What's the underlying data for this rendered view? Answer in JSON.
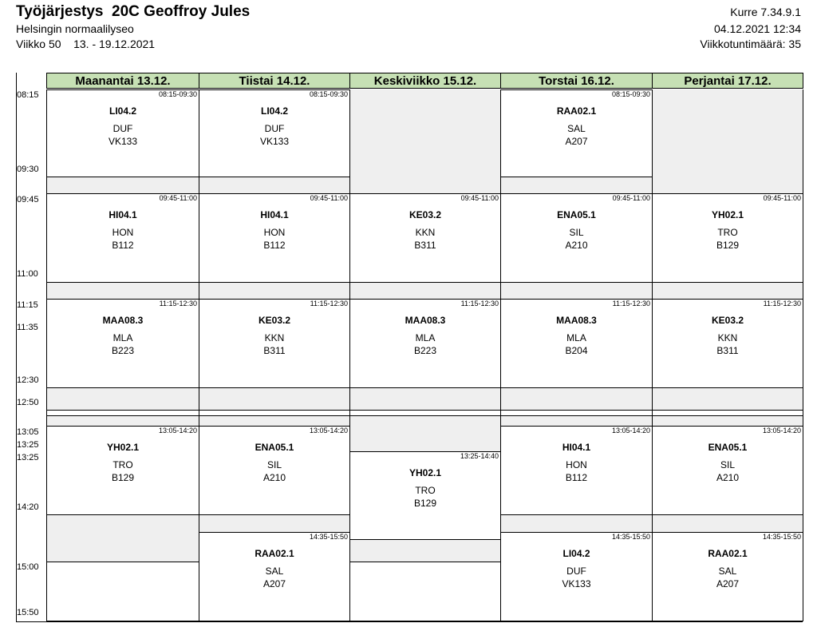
{
  "header": {
    "title": "Työjärjestys  20C Geoffroy Jules",
    "school": "Helsingin normaalilyseo",
    "week": "Viikko 50    13. - 19.12.2021",
    "version": "Kurre 7.34.9.1",
    "printed": "04.12.2021 12:34",
    "hours": "Viikkotuntimäärä: 35"
  },
  "times": [
    "08:15",
    "09:30",
    "09:45",
    "11:00",
    "11:15",
    "11:35",
    "12:30",
    "12:50",
    "13:05",
    "13:25",
    "13:25",
    "14:20",
    "15:00",
    "15:50"
  ],
  "days": [
    {
      "name": "Maanantai 13.12.",
      "lessons": [
        {
          "time": "08:15-09:30",
          "course": "LI04.2",
          "teacher": "DUF",
          "room": "VK133"
        },
        {
          "time": "09:45-11:00",
          "course": "HI04.1",
          "teacher": "HON",
          "room": "B112"
        },
        {
          "time": "11:15-12:30",
          "course": "MAA08.3",
          "teacher": "MLA",
          "room": "B223"
        },
        {
          "time": "13:05-14:20",
          "course": "YH02.1",
          "teacher": "TRO",
          "room": "B129"
        }
      ]
    },
    {
      "name": "Tiistai 14.12.",
      "lessons": [
        {
          "time": "08:15-09:30",
          "course": "LI04.2",
          "teacher": "DUF",
          "room": "VK133"
        },
        {
          "time": "09:45-11:00",
          "course": "HI04.1",
          "teacher": "HON",
          "room": "B112"
        },
        {
          "time": "11:15-12:30",
          "course": "KE03.2",
          "teacher": "KKN",
          "room": "B311"
        },
        {
          "time": "13:05-14:20",
          "course": "ENA05.1",
          "teacher": "SIL",
          "room": "A210"
        },
        {
          "time": "14:35-15:50",
          "course": "RAA02.1",
          "teacher": "SAL",
          "room": "A207"
        }
      ]
    },
    {
      "name": "Keskiviikko 15.12.",
      "lessons": [
        {
          "time": "09:45-11:00",
          "course": "KE03.2",
          "teacher": "KKN",
          "room": "B311"
        },
        {
          "time": "11:15-12:30",
          "course": "MAA08.3",
          "teacher": "MLA",
          "room": "B223"
        },
        {
          "time": "13:25-14:40",
          "course": "YH02.1",
          "teacher": "TRO",
          "room": "B129"
        }
      ]
    },
    {
      "name": "Torstai 16.12.",
      "lessons": [
        {
          "time": "08:15-09:30",
          "course": "RAA02.1",
          "teacher": "SAL",
          "room": "A207"
        },
        {
          "time": "09:45-11:00",
          "course": "ENA05.1",
          "teacher": "SIL",
          "room": "A210"
        },
        {
          "time": "11:15-12:30",
          "course": "MAA08.3",
          "teacher": "MLA",
          "room": "B204"
        },
        {
          "time": "13:05-14:20",
          "course": "HI04.1",
          "teacher": "HON",
          "room": "B112"
        },
        {
          "time": "14:35-15:50",
          "course": "LI04.2",
          "teacher": "DUF",
          "room": "VK133"
        }
      ]
    },
    {
      "name": "Perjantai 17.12.",
      "lessons": [
        {
          "time": "09:45-11:00",
          "course": "YH02.1",
          "teacher": "TRO",
          "room": "B129"
        },
        {
          "time": "11:15-12:30",
          "course": "KE03.2",
          "teacher": "KKN",
          "room": "B311"
        },
        {
          "time": "13:05-14:20",
          "course": "ENA05.1",
          "teacher": "SIL",
          "room": "A210"
        },
        {
          "time": "14:35-15:50",
          "course": "RAA02.1",
          "teacher": "SAL",
          "room": "A207"
        }
      ]
    }
  ]
}
